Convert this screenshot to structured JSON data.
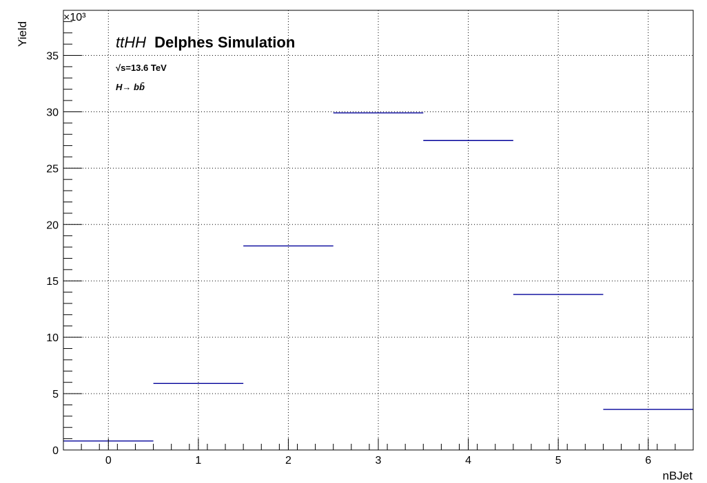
{
  "chart_data": {
    "type": "bar",
    "style": "histogram-steps",
    "title_italic": "ttHH",
    "title_bold": "Delphes Simulation",
    "energy_label": "√s=13.6 TeV",
    "decay_label": "H→ bb̄",
    "xlabel": "nBJet",
    "ylabel": "Yield",
    "y_multiplier": "×10³",
    "categories": [
      "0",
      "1",
      "2",
      "3",
      "4",
      "5",
      "6"
    ],
    "values": [
      800,
      5900,
      18100,
      29900,
      27450,
      13800,
      3600
    ],
    "xlim": [
      -0.5,
      6.5
    ],
    "ylim": [
      0,
      39000
    ],
    "x_ticks": [
      0,
      1,
      2,
      3,
      4,
      5,
      6
    ],
    "y_ticks": [
      0,
      5,
      10,
      15,
      20,
      25,
      30,
      35
    ],
    "y_tick_scale": 1000,
    "grid": true,
    "line_color": "#000099"
  }
}
